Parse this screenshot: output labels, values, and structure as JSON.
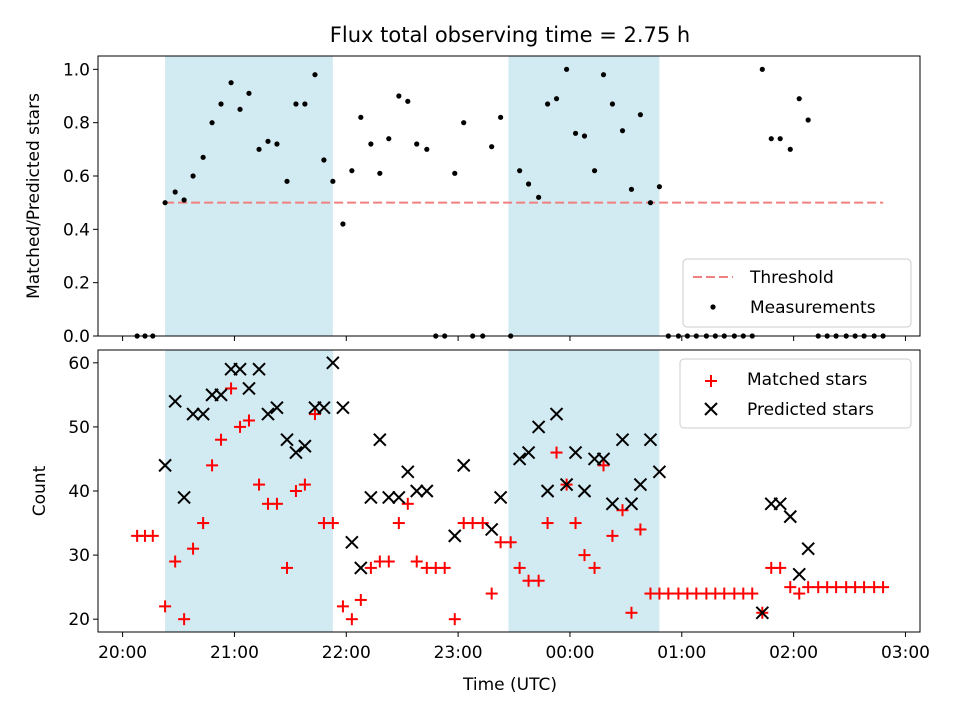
{
  "chart_data": {
    "type": "scatter",
    "title": "Flux total observing time = 2.75 h",
    "xlabel": "Time (UTC)",
    "x_tick_labels": [
      "20:00",
      "21:00",
      "22:00",
      "23:00",
      "00:00",
      "01:00",
      "02:00",
      "03:00"
    ],
    "x_tick_hours": [
      20,
      21,
      22,
      23,
      24,
      25,
      26,
      27
    ],
    "xlim_hours": [
      19.78,
      27.13
    ],
    "shaded_intervals_hours": [
      [
        20.38,
        21.88
      ],
      [
        23.45,
        24.8
      ]
    ],
    "shade_color": "#add8e6",
    "panels": [
      {
        "ylabel": "Matched/Predicted stars",
        "ylim": [
          0,
          1.05
        ],
        "yticks": [
          0.0,
          0.2,
          0.4,
          0.6,
          0.8,
          1.0
        ],
        "ytick_labels": [
          "0.0",
          "0.2",
          "0.4",
          "0.6",
          "0.8",
          "1.0"
        ],
        "legend_position": "lower-right",
        "threshold": {
          "name": "Threshold",
          "value": 0.5,
          "x_range": [
            20.38,
            27.13
          ],
          "color": "#f08080"
        },
        "series": [
          {
            "name": "Measurements",
            "marker": "dot",
            "color": "#000000",
            "points": [
              [
                20.13,
                0.0
              ],
              [
                20.2,
                0.0
              ],
              [
                20.27,
                0.0
              ],
              [
                20.38,
                0.5
              ],
              [
                20.47,
                0.54
              ],
              [
                20.55,
                0.51
              ],
              [
                20.63,
                0.6
              ],
              [
                20.72,
                0.67
              ],
              [
                20.8,
                0.8
              ],
              [
                20.88,
                0.87
              ],
              [
                20.97,
                0.95
              ],
              [
                21.05,
                0.85
              ],
              [
                21.13,
                0.91
              ],
              [
                21.22,
                0.7
              ],
              [
                21.3,
                0.73
              ],
              [
                21.38,
                0.72
              ],
              [
                21.47,
                0.58
              ],
              [
                21.55,
                0.87
              ],
              [
                21.63,
                0.87
              ],
              [
                21.72,
                0.98
              ],
              [
                21.8,
                0.66
              ],
              [
                21.88,
                0.58
              ],
              [
                21.97,
                0.42
              ],
              [
                22.05,
                0.62
              ],
              [
                22.13,
                0.82
              ],
              [
                22.22,
                0.72
              ],
              [
                22.3,
                0.61
              ],
              [
                22.38,
                0.74
              ],
              [
                22.47,
                0.9
              ],
              [
                22.55,
                0.88
              ],
              [
                22.63,
                0.72
              ],
              [
                22.72,
                0.7
              ],
              [
                22.8,
                0.0
              ],
              [
                22.88,
                0.0
              ],
              [
                22.97,
                0.61
              ],
              [
                23.05,
                0.8
              ],
              [
                23.13,
                0.0
              ],
              [
                23.22,
                0.0
              ],
              [
                23.3,
                0.71
              ],
              [
                23.38,
                0.82
              ],
              [
                23.47,
                0.0
              ],
              [
                23.55,
                0.62
              ],
              [
                23.63,
                0.57
              ],
              [
                23.72,
                0.52
              ],
              [
                23.8,
                0.87
              ],
              [
                23.88,
                0.89
              ],
              [
                23.97,
                1.0
              ],
              [
                24.05,
                0.76
              ],
              [
                24.13,
                0.75
              ],
              [
                24.22,
                0.62
              ],
              [
                24.3,
                0.98
              ],
              [
                24.38,
                0.87
              ],
              [
                24.47,
                0.77
              ],
              [
                24.55,
                0.55
              ],
              [
                24.63,
                0.83
              ],
              [
                24.72,
                0.5
              ],
              [
                24.8,
                0.56
              ],
              [
                24.88,
                0.0
              ],
              [
                24.97,
                0.0
              ],
              [
                25.05,
                0.0
              ],
              [
                25.13,
                0.0
              ],
              [
                25.22,
                0.0
              ],
              [
                25.3,
                0.0
              ],
              [
                25.38,
                0.0
              ],
              [
                25.47,
                0.0
              ],
              [
                25.55,
                0.0
              ],
              [
                25.63,
                0.0
              ],
              [
                25.72,
                1.0
              ],
              [
                25.8,
                0.74
              ],
              [
                25.88,
                0.74
              ],
              [
                25.97,
                0.7
              ],
              [
                26.05,
                0.89
              ],
              [
                26.13,
                0.81
              ],
              [
                26.22,
                0.0
              ],
              [
                26.3,
                0.0
              ],
              [
                26.38,
                0.0
              ],
              [
                26.47,
                0.0
              ],
              [
                26.55,
                0.0
              ],
              [
                26.63,
                0.0
              ],
              [
                26.72,
                0.0
              ],
              [
                26.8,
                0.0
              ]
            ]
          }
        ]
      },
      {
        "ylabel": "Count",
        "ylim": [
          18,
          62
        ],
        "yticks": [
          20,
          30,
          40,
          50,
          60
        ],
        "ytick_labels": [
          "20",
          "30",
          "40",
          "50",
          "60"
        ],
        "legend_position": "upper-right",
        "series": [
          {
            "name": "Matched stars",
            "marker": "plus",
            "color": "#ff0000",
            "points": [
              [
                20.13,
                33
              ],
              [
                20.2,
                33
              ],
              [
                20.27,
                33
              ],
              [
                20.38,
                22
              ],
              [
                20.47,
                29
              ],
              [
                20.55,
                20
              ],
              [
                20.63,
                31
              ],
              [
                20.72,
                35
              ],
              [
                20.8,
                44
              ],
              [
                20.88,
                48
              ],
              [
                20.97,
                56
              ],
              [
                21.05,
                50
              ],
              [
                21.13,
                51
              ],
              [
                21.22,
                41
              ],
              [
                21.3,
                38
              ],
              [
                21.38,
                38
              ],
              [
                21.47,
                28
              ],
              [
                21.55,
                40
              ],
              [
                21.63,
                41
              ],
              [
                21.72,
                52
              ],
              [
                21.8,
                35
              ],
              [
                21.88,
                35
              ],
              [
                21.97,
                22
              ],
              [
                22.05,
                20
              ],
              [
                22.13,
                23
              ],
              [
                22.22,
                28
              ],
              [
                22.3,
                29
              ],
              [
                22.38,
                29
              ],
              [
                22.47,
                35
              ],
              [
                22.55,
                38
              ],
              [
                22.63,
                29
              ],
              [
                22.72,
                28
              ],
              [
                22.8,
                28
              ],
              [
                22.88,
                28
              ],
              [
                22.97,
                20
              ],
              [
                23.05,
                35
              ],
              [
                23.13,
                35
              ],
              [
                23.22,
                35
              ],
              [
                23.3,
                24
              ],
              [
                23.38,
                32
              ],
              [
                23.47,
                32
              ],
              [
                23.55,
                28
              ],
              [
                23.63,
                26
              ],
              [
                23.72,
                26
              ],
              [
                23.8,
                35
              ],
              [
                23.88,
                46
              ],
              [
                23.97,
                41
              ],
              [
                24.05,
                35
              ],
              [
                24.13,
                30
              ],
              [
                24.22,
                28
              ],
              [
                24.3,
                44
              ],
              [
                24.38,
                33
              ],
              [
                24.47,
                37
              ],
              [
                24.55,
                21
              ],
              [
                24.63,
                34
              ],
              [
                24.72,
                24
              ],
              [
                24.8,
                24
              ],
              [
                24.88,
                24
              ],
              [
                24.97,
                24
              ],
              [
                25.05,
                24
              ],
              [
                25.13,
                24
              ],
              [
                25.22,
                24
              ],
              [
                25.3,
                24
              ],
              [
                25.38,
                24
              ],
              [
                25.47,
                24
              ],
              [
                25.55,
                24
              ],
              [
                25.63,
                24
              ],
              [
                25.72,
                21
              ],
              [
                25.8,
                28
              ],
              [
                25.88,
                28
              ],
              [
                25.97,
                25
              ],
              [
                26.05,
                24
              ],
              [
                26.13,
                25
              ],
              [
                26.22,
                25
              ],
              [
                26.3,
                25
              ],
              [
                26.38,
                25
              ],
              [
                26.47,
                25
              ],
              [
                26.55,
                25
              ],
              [
                26.63,
                25
              ],
              [
                26.72,
                25
              ],
              [
                26.8,
                25
              ]
            ]
          },
          {
            "name": "Predicted stars",
            "marker": "x",
            "color": "#000000",
            "points": [
              [
                20.38,
                44
              ],
              [
                20.47,
                54
              ],
              [
                20.55,
                39
              ],
              [
                20.63,
                52
              ],
              [
                20.72,
                52
              ],
              [
                20.8,
                55
              ],
              [
                20.88,
                55
              ],
              [
                20.97,
                59
              ],
              [
                21.05,
                59
              ],
              [
                21.13,
                56
              ],
              [
                21.22,
                59
              ],
              [
                21.3,
                52
              ],
              [
                21.38,
                53
              ],
              [
                21.47,
                48
              ],
              [
                21.55,
                46
              ],
              [
                21.63,
                47
              ],
              [
                21.72,
                53
              ],
              [
                21.8,
                53
              ],
              [
                21.88,
                60
              ],
              [
                21.97,
                53
              ],
              [
                22.05,
                32
              ],
              [
                22.13,
                28
              ],
              [
                22.22,
                39
              ],
              [
                22.3,
                48
              ],
              [
                22.38,
                39
              ],
              [
                22.47,
                39
              ],
              [
                22.55,
                43
              ],
              [
                22.63,
                40
              ],
              [
                22.72,
                40
              ],
              [
                22.97,
                33
              ],
              [
                23.05,
                44
              ],
              [
                23.3,
                34
              ],
              [
                23.38,
                39
              ],
              [
                23.55,
                45
              ],
              [
                23.63,
                46
              ],
              [
                23.72,
                50
              ],
              [
                23.8,
                40
              ],
              [
                23.88,
                52
              ],
              [
                23.97,
                41
              ],
              [
                24.05,
                46
              ],
              [
                24.13,
                40
              ],
              [
                24.22,
                45
              ],
              [
                24.3,
                45
              ],
              [
                24.38,
                38
              ],
              [
                24.47,
                48
              ],
              [
                24.55,
                38
              ],
              [
                24.63,
                41
              ],
              [
                24.72,
                48
              ],
              [
                24.8,
                43
              ],
              [
                25.72,
                21
              ],
              [
                25.8,
                38
              ],
              [
                25.88,
                38
              ],
              [
                25.97,
                36
              ],
              [
                26.05,
                27
              ],
              [
                26.13,
                31
              ]
            ]
          }
        ]
      }
    ]
  }
}
